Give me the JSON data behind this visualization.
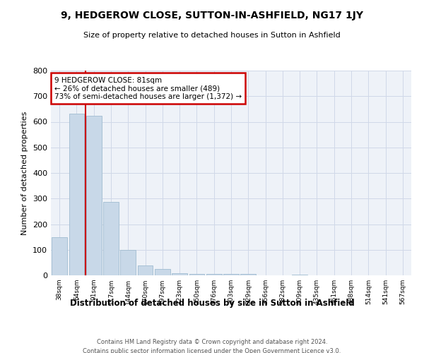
{
  "title": "9, HEDGEROW CLOSE, SUTTON-IN-ASHFIELD, NG17 1JY",
  "subtitle": "Size of property relative to detached houses in Sutton in Ashfield",
  "xlabel": "Distribution of detached houses by size in Sutton in Ashfield",
  "ylabel": "Number of detached properties",
  "footer_line1": "Contains HM Land Registry data © Crown copyright and database right 2024.",
  "footer_line2": "Contains public sector information licensed under the Open Government Licence v3.0.",
  "annotation_line1": "9 HEDGEROW CLOSE: 81sqm",
  "annotation_line2": "← 26% of detached houses are smaller (489)",
  "annotation_line3": "73% of semi-detached houses are larger (1,372) →",
  "bar_color": "#c8d8e8",
  "bar_edge_color": "#a0bcd0",
  "marker_color": "#cc0000",
  "grid_color": "#d0d8e8",
  "bg_color": "#eef2f8",
  "categories": [
    "38sqm",
    "64sqm",
    "91sqm",
    "117sqm",
    "144sqm",
    "170sqm",
    "197sqm",
    "223sqm",
    "250sqm",
    "276sqm",
    "303sqm",
    "329sqm",
    "356sqm",
    "382sqm",
    "409sqm",
    "435sqm",
    "461sqm",
    "488sqm",
    "514sqm",
    "541sqm",
    "567sqm"
  ],
  "values": [
    148,
    632,
    624,
    287,
    100,
    38,
    25,
    8,
    5,
    5,
    5,
    5,
    1,
    0,
    2,
    0,
    0,
    0,
    1,
    0,
    0
  ],
  "marker_bin_index": 2,
  "ylim": [
    0,
    800
  ],
  "yticks": [
    0,
    100,
    200,
    300,
    400,
    500,
    600,
    700,
    800
  ]
}
